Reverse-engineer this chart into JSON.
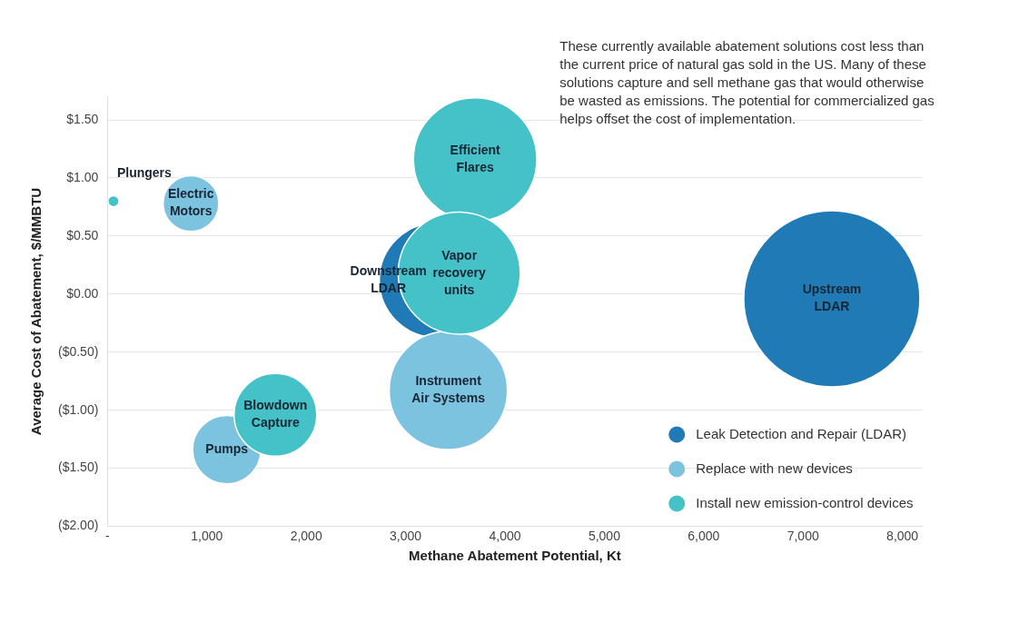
{
  "chart_data": {
    "type": "bubble",
    "xlabel": "Methane Abatement Potential, Kt",
    "ylabel": "Average Cost of Abatement, $/MMBTU",
    "xlim": [
      0,
      8200
    ],
    "ylim": [
      -2,
      1.7
    ],
    "xticks": [
      {
        "value": 0,
        "label": "-"
      },
      {
        "value": 1000,
        "label": "1,000"
      },
      {
        "value": 2000,
        "label": "2,000"
      },
      {
        "value": 3000,
        "label": "3,000"
      },
      {
        "value": 4000,
        "label": "4,000"
      },
      {
        "value": 5000,
        "label": "5,000"
      },
      {
        "value": 6000,
        "label": "6,000"
      },
      {
        "value": 7000,
        "label": "7,000"
      },
      {
        "value": 8000,
        "label": "8,000"
      }
    ],
    "yticks": [
      {
        "value": 1.5,
        "label": "$1.50"
      },
      {
        "value": 1,
        "label": "$1.00"
      },
      {
        "value": 0.5,
        "label": "$0.50"
      },
      {
        "value": 0,
        "label": "$0.00"
      },
      {
        "value": -0.5,
        "label": "($0.50)"
      },
      {
        "value": -1,
        "label": "($1.00)"
      },
      {
        "value": -1.5,
        "label": "($1.50)"
      },
      {
        "value": -2,
        "label": "($2.00)"
      }
    ],
    "grid": "y",
    "legend": "bottom right",
    "series": [
      {
        "name": "Leak Detection and Repair (LDAR)",
        "color": "#1f7ab5",
        "x": [
          3310,
          7290
        ],
        "values": [
          0.12,
          -0.04
        ],
        "sizes": [
          0.42,
          1
        ]
      },
      {
        "name": "Replace with new devices",
        "color": "#7cc3e0",
        "x": [
          840,
          3430,
          1200
        ],
        "values": [
          0.78,
          -0.83,
          -1.34
        ],
        "sizes": [
          0.1,
          0.45,
          0.15
        ]
      },
      {
        "name": "Install new emission-control devices",
        "color": "#44c2c8",
        "x": [
          60,
          3700,
          3540,
          1690
        ],
        "values": [
          0.8,
          1.16,
          0.18,
          -1.04
        ],
        "sizes": [
          0.004,
          0.49,
          0.48,
          0.22
        ]
      }
    ],
    "annotations": [
      "These currently available abatement solutions cost less than the current price of natural gas sold in the US. Many of these solutions capture and sell methane gas that would otherwise be wasted as emissions. The potential for commercialized gas helps offset the cost of implementation.",
      {
        "text": "Plungers",
        "x": 60,
        "y": 0.8
      },
      {
        "text": "Electric\nMotors",
        "x": 840,
        "y": 0.78
      },
      {
        "text": "Efficient\nFlares",
        "x": 3700,
        "y": 1.16
      },
      {
        "text": "Downstream\nLDAR",
        "x": 3310,
        "y": 0.12
      },
      {
        "text": "Vapor\nrecovery\nunits",
        "x": 3540,
        "y": 0.18
      },
      {
        "text": "Instrument\nAir Systems",
        "x": 3430,
        "y": -0.83
      },
      {
        "text": "Blowdown\nCapture",
        "x": 1690,
        "y": -1.04
      },
      {
        "text": "Pumps",
        "x": 1200,
        "y": -1.34
      },
      {
        "text": "Upstream\nLDAR",
        "x": 7290,
        "y": -0.04
      }
    ]
  }
}
